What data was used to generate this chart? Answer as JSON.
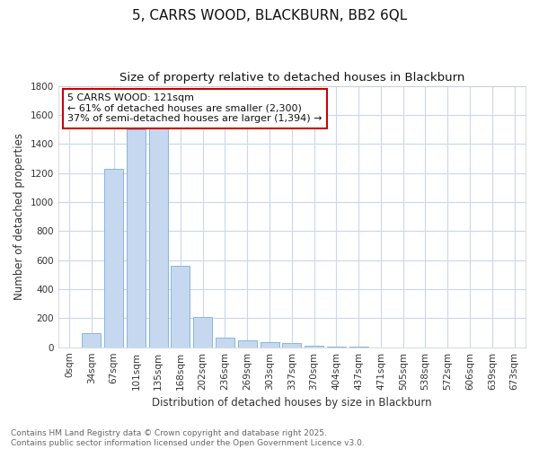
{
  "title1": "5, CARRS WOOD, BLACKBURN, BB2 6QL",
  "title2": "Size of property relative to detached houses in Blackburn",
  "xlabel": "Distribution of detached houses by size in Blackburn",
  "ylabel": "Number of detached properties",
  "categories": [
    "0sqm",
    "34sqm",
    "67sqm",
    "101sqm",
    "135sqm",
    "168sqm",
    "202sqm",
    "236sqm",
    "269sqm",
    "303sqm",
    "337sqm",
    "370sqm",
    "404sqm",
    "437sqm",
    "471sqm",
    "505sqm",
    "538sqm",
    "572sqm",
    "606sqm",
    "639sqm",
    "673sqm"
  ],
  "values": [
    0,
    95,
    1230,
    1500,
    1510,
    560,
    210,
    63,
    50,
    38,
    28,
    10,
    5,
    2,
    1,
    0,
    0,
    0,
    0,
    0,
    0
  ],
  "bar_color": "#c5d8f0",
  "bar_edge_color": "#7aafd4",
  "background_color": "#ffffff",
  "plot_bg_color": "#ffffff",
  "grid_color": "#c8d8ee",
  "annotation_text": "5 CARRS WOOD: 121sqm\n← 61% of detached houses are smaller (2,300)\n37% of semi-detached houses are larger (1,394) →",
  "annotation_box_color": "#ffffff",
  "annotation_box_edge": "#cc0000",
  "footer1": "Contains HM Land Registry data © Crown copyright and database right 2025.",
  "footer2": "Contains public sector information licensed under the Open Government Licence v3.0.",
  "ylim": [
    0,
    1800
  ],
  "yticks": [
    0,
    200,
    400,
    600,
    800,
    1000,
    1200,
    1400,
    1600,
    1800
  ],
  "title_fontsize": 11,
  "subtitle_fontsize": 9.5,
  "axis_label_fontsize": 8.5,
  "tick_fontsize": 7.5,
  "footer_fontsize": 6.5,
  "annotation_fontsize": 8
}
